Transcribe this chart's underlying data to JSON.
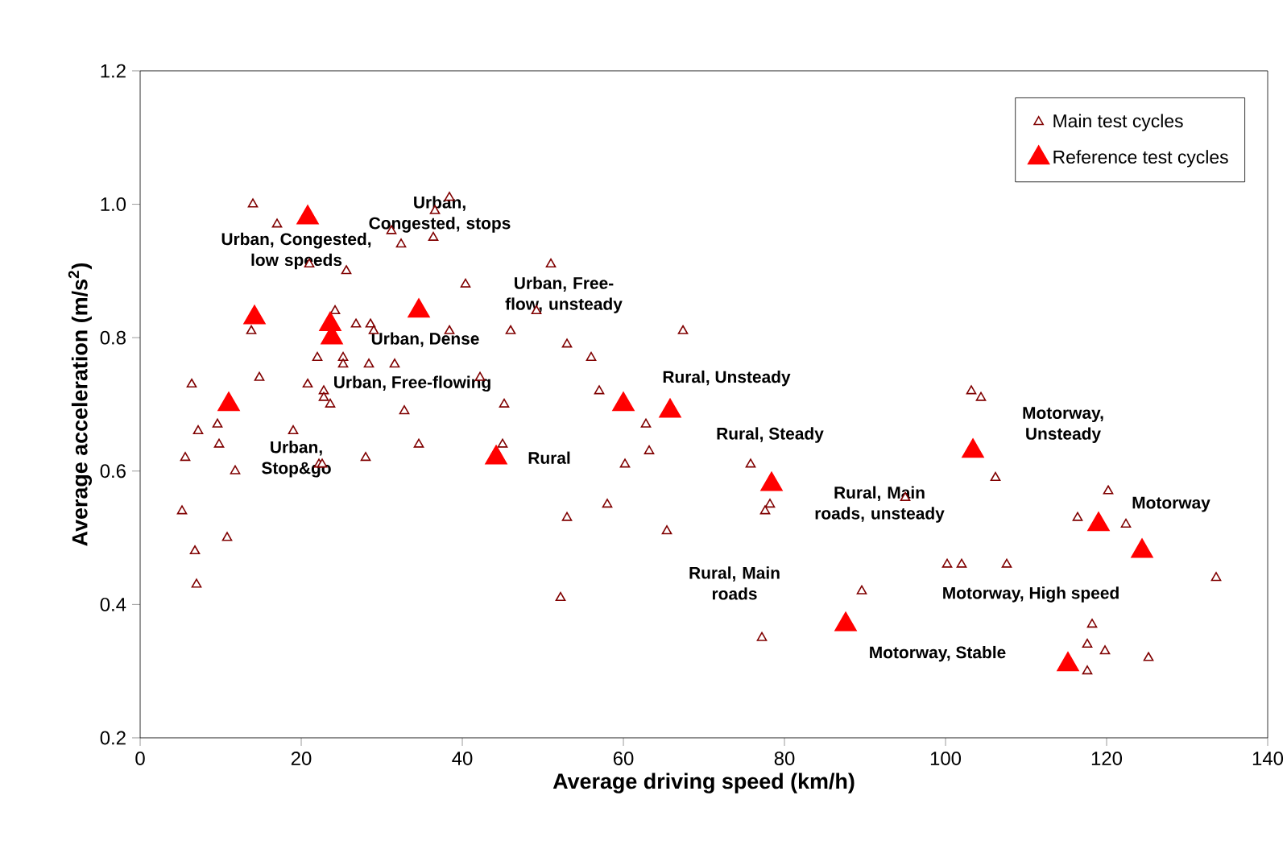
{
  "chart_data": {
    "type": "scatter",
    "xlabel": "Average driving speed (km/h)",
    "ylabel": "Average acceleration (m/s$^{2}$)",
    "xlim": [
      0,
      140
    ],
    "xticks": [
      0,
      20,
      40,
      60,
      80,
      100,
      120,
      140
    ],
    "ylim": [
      0.2,
      1.2
    ],
    "yticks": [
      0.2,
      0.4,
      0.6,
      0.8,
      {
        "value": 1.0,
        "label": "1.0"
      },
      1.2
    ],
    "grid": false,
    "legend": "top right",
    "marker": "triangle",
    "series": [
      {
        "name": "Main test cycles",
        "color": "#800000",
        "x": [
          14,
          17,
          21,
          25.6,
          31.2,
          32.4,
          36.6,
          38.4,
          36.4,
          40.4,
          13.8,
          24.2,
          26.8,
          28.6,
          29,
          38.4,
          46,
          49.2,
          22,
          25.2,
          25.2,
          28.4,
          31.6,
          14.8,
          6.4,
          20.8,
          22.8,
          22.8,
          23.6,
          42.2,
          45.2,
          32.8,
          9.6,
          7.2,
          9.8,
          19,
          34.6,
          45,
          5.6,
          11.8,
          22.2,
          22.6,
          28,
          5.2,
          10.8,
          6.8,
          7,
          51,
          67.4,
          53,
          56,
          57,
          62.8,
          63.2,
          60.2,
          75.8,
          78.2,
          77.6,
          58,
          53,
          65.4,
          52.2,
          89.6,
          77.2,
          103.2,
          104.4,
          106.2,
          95,
          120.2,
          116.4,
          122.4,
          100.2,
          102,
          107.6,
          133.6,
          118.2,
          117.6,
          119.8,
          125.2,
          117.6
        ],
        "values": [
          1.0,
          0.97,
          0.91,
          0.9,
          0.96,
          0.94,
          0.99,
          1.01,
          0.95,
          0.88,
          0.81,
          0.84,
          0.82,
          0.82,
          0.81,
          0.81,
          0.81,
          0.84,
          0.77,
          0.77,
          0.76,
          0.76,
          0.76,
          0.74,
          0.73,
          0.73,
          0.72,
          0.71,
          0.7,
          0.74,
          0.7,
          0.69,
          0.67,
          0.66,
          0.64,
          0.66,
          0.64,
          0.64,
          0.62,
          0.6,
          0.61,
          0.61,
          0.62,
          0.54,
          0.5,
          0.48,
          0.43,
          0.91,
          0.81,
          0.79,
          0.77,
          0.72,
          0.67,
          0.63,
          0.61,
          0.61,
          0.55,
          0.54,
          0.55,
          0.53,
          0.51,
          0.41,
          0.42,
          0.35,
          0.72,
          0.71,
          0.59,
          0.56,
          0.57,
          0.53,
          0.52,
          0.46,
          0.46,
          0.46,
          0.44,
          0.37,
          0.34,
          0.33,
          0.32,
          0.3
        ]
      },
      {
        "name": "Reference test cycles",
        "color": "#ff0000",
        "x": [
          20.8,
          14.2,
          23.6,
          23.8,
          34.6,
          11,
          44.2,
          60,
          65.8,
          78.4,
          87.6,
          103.4,
          119,
          124.4,
          115.2
        ],
        "values": [
          0.98,
          0.83,
          0.82,
          0.8,
          0.84,
          0.7,
          0.62,
          0.7,
          0.69,
          0.58,
          0.37,
          0.63,
          0.52,
          0.48,
          0.31
        ]
      }
    ],
    "annotations": [
      "Urban, Congested, stops",
      "Urban, Congested, low speeds",
      "Urban, Free-flow, unsteady",
      "Urban, Dense",
      "Urban, Free-flowing",
      "Urban, Stop&go",
      "Rural",
      "Rural, Unsteady",
      "Rural, Steady",
      "Rural, Main roads, unsteady",
      "Rural, Main roads",
      "Motorway, Unsteady",
      "Motorway",
      "Motorway, High speed",
      "Motorway, Stable"
    ]
  }
}
